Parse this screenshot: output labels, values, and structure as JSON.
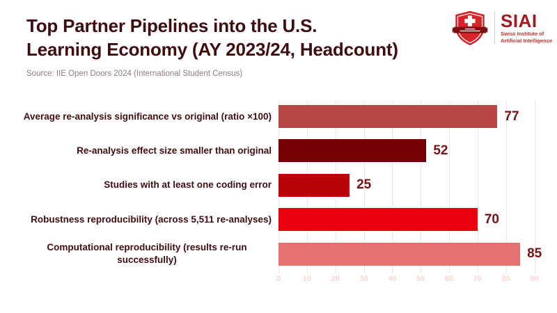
{
  "header": {
    "title_line1": "Top Partner Pipelines into the U.S.",
    "title_line2": "Learning Economy (AY 2023/24, Headcount)",
    "source": "Source: IIE Open Doors 2024 (International Student Census)"
  },
  "logo": {
    "acronym": "SIAI",
    "subtitle_line1": "Swiss Institute of",
    "subtitle_line2": "Artificial Intelligence",
    "shield_color": "#d8232a",
    "banner_color": "#7e1012",
    "accent_text_color": "#a11a1f"
  },
  "chart_data": {
    "type": "bar",
    "orientation": "horizontal",
    "title": "Top Partner Pipelines into the U.S. Learning Economy (AY 2023/24, Headcount)",
    "source_note": "Source: IIE Open Doors 2024 (International Student Census)",
    "categories": [
      "Average re-analysis significance vs original (ratio ×100)",
      "Re-analysis effect size smaller than original",
      "Studies with at least one coding error",
      "Robustness reproducibility (across 5,511 re-analyses)",
      "Computational reproducibility (results re-run successfully)"
    ],
    "values": [
      77,
      52,
      25,
      70,
      85
    ],
    "bar_colors": [
      "#b64545",
      "#740204",
      "#b8020a",
      "#e9000f",
      "#e57170"
    ],
    "value_labels": [
      "77",
      "52",
      "25",
      "70",
      "85"
    ],
    "xlim": [
      0,
      96
    ],
    "x_ticks": [
      0,
      10,
      20,
      30,
      40,
      50,
      60,
      70,
      80,
      90
    ],
    "grid": true,
    "legend": "none",
    "gridline_color": "#f8e3e1",
    "tick_label_color": "#fad6d4",
    "value_label_color": "#7a1014",
    "category_label_color": "#420c10"
  }
}
